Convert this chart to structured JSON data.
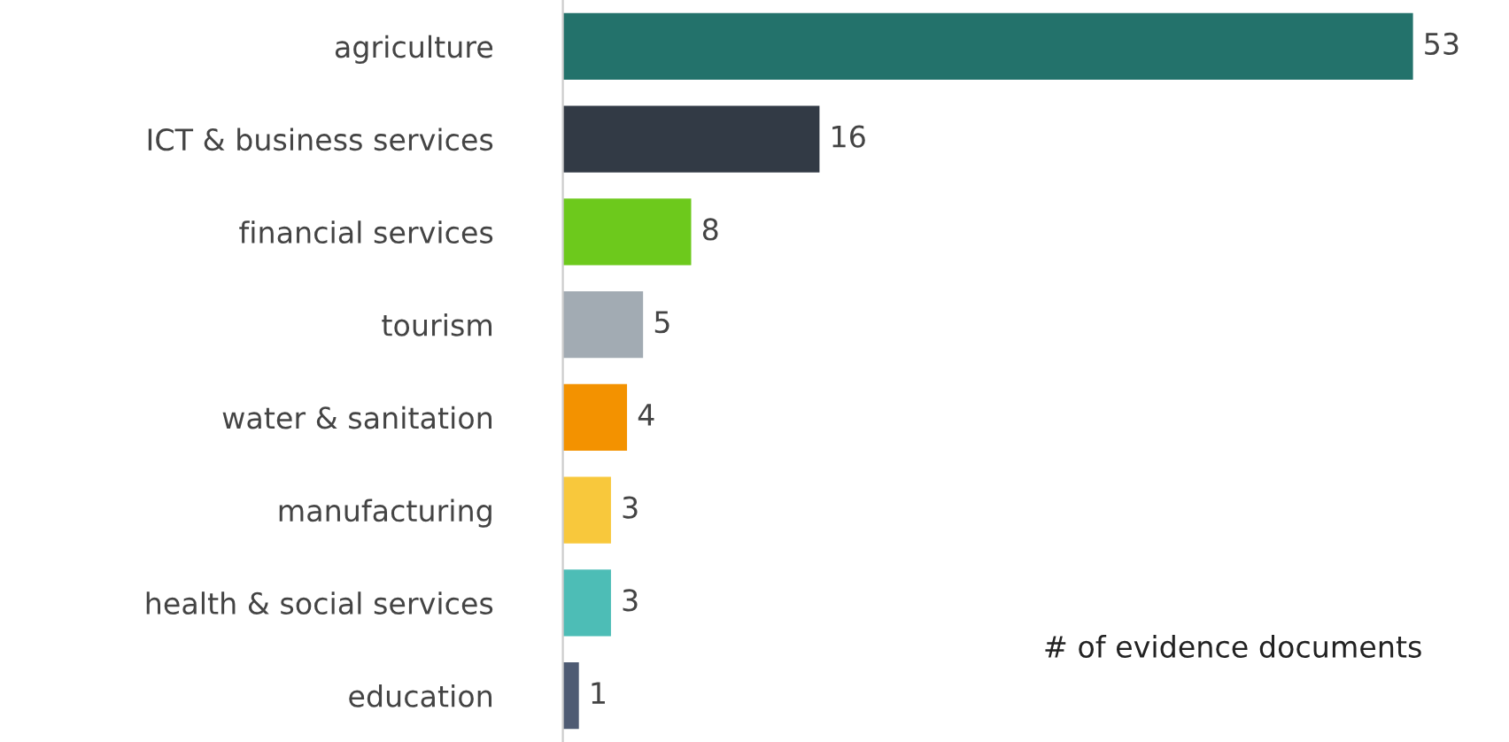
{
  "chart_data": {
    "type": "bar",
    "orientation": "horizontal",
    "categories": [
      "agriculture",
      "ICT & business services",
      "financial services",
      "tourism",
      "water & sanitation",
      "manufacturing",
      "health & social services",
      "education"
    ],
    "values": [
      53,
      16,
      8,
      5,
      4,
      3,
      3,
      1
    ],
    "colors": [
      "#23726b",
      "#323a45",
      "#6dc91c",
      "#a2abb3",
      "#f39200",
      "#f8c83c",
      "#4dbdb6",
      "#4e5b73"
    ],
    "data_labels": true,
    "grid": false,
    "legend": false,
    "annotations": [
      "# of evidence documents"
    ]
  }
}
